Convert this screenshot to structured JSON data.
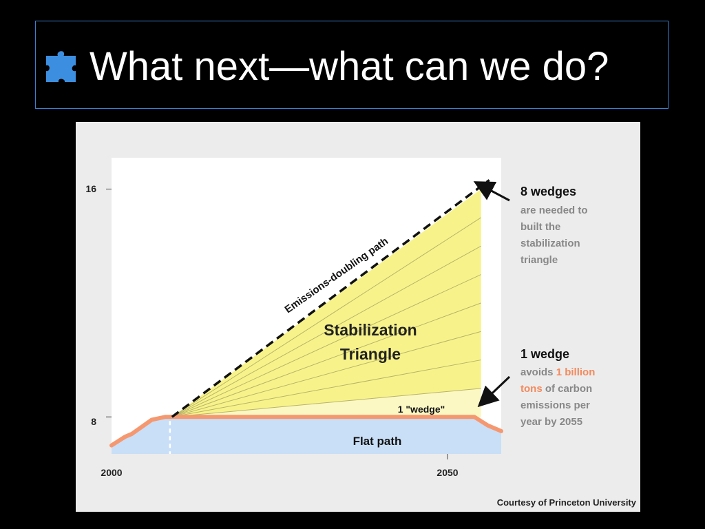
{
  "slide": {
    "title": "What next—what can we do?",
    "title_icon": "puzzle-piece-icon"
  },
  "colors": {
    "background": "#000000",
    "title_border": "#3a7fd1",
    "title_text": "#ffffff",
    "icon": "#3c8fe0",
    "triangle_fill": "#f7f38a",
    "wedge_fill": "#fbf8c4",
    "flat_fill": "#c9dff7",
    "flat_line": "#f59870",
    "highlight": "#f4895c",
    "gray_text": "#888888"
  },
  "chart_data": {
    "type": "area",
    "title": "",
    "xlabel": "",
    "ylabel": "",
    "x_ticks": [
      2000,
      2050
    ],
    "y_ticks": [
      8,
      16
    ],
    "xlim": [
      2000,
      2058
    ],
    "ylim": [
      6.7,
      17.1
    ],
    "historical_path": {
      "x": [
        2000,
        2002,
        2003,
        2006,
        2008
      ],
      "y": [
        7.0,
        7.3,
        7.4,
        7.9,
        8.0
      ]
    },
    "emissions_doubling_path": {
      "label": "Emissions-doubling path",
      "x": [
        2009,
        2055
      ],
      "y": [
        8.0,
        16.0
      ]
    },
    "flat_path": {
      "label": "Flat path",
      "x": [
        2009,
        2054,
        2056,
        2058
      ],
      "y": [
        8.0,
        8.0,
        7.7,
        7.5
      ]
    },
    "stabilization_triangle": {
      "label_line1": "Stabilization",
      "label_line2": "Triangle",
      "wedges": 8
    },
    "wedge_label": "1 \"wedge\"",
    "annotations": {
      "eight_wedges": {
        "heading": "8 wedges",
        "lines": [
          "are needed to",
          "built the",
          "stabilization",
          "triangle"
        ]
      },
      "one_wedge": {
        "heading": "1 wedge",
        "line1_prefix": "avoids ",
        "line1_highlight": "1 billion",
        "line2_highlight": "tons",
        "line2_suffix": " of carbon",
        "lines_rest": [
          "emissions per",
          "year by 2055"
        ]
      }
    },
    "credit": "Courtesy of Princeton University"
  }
}
